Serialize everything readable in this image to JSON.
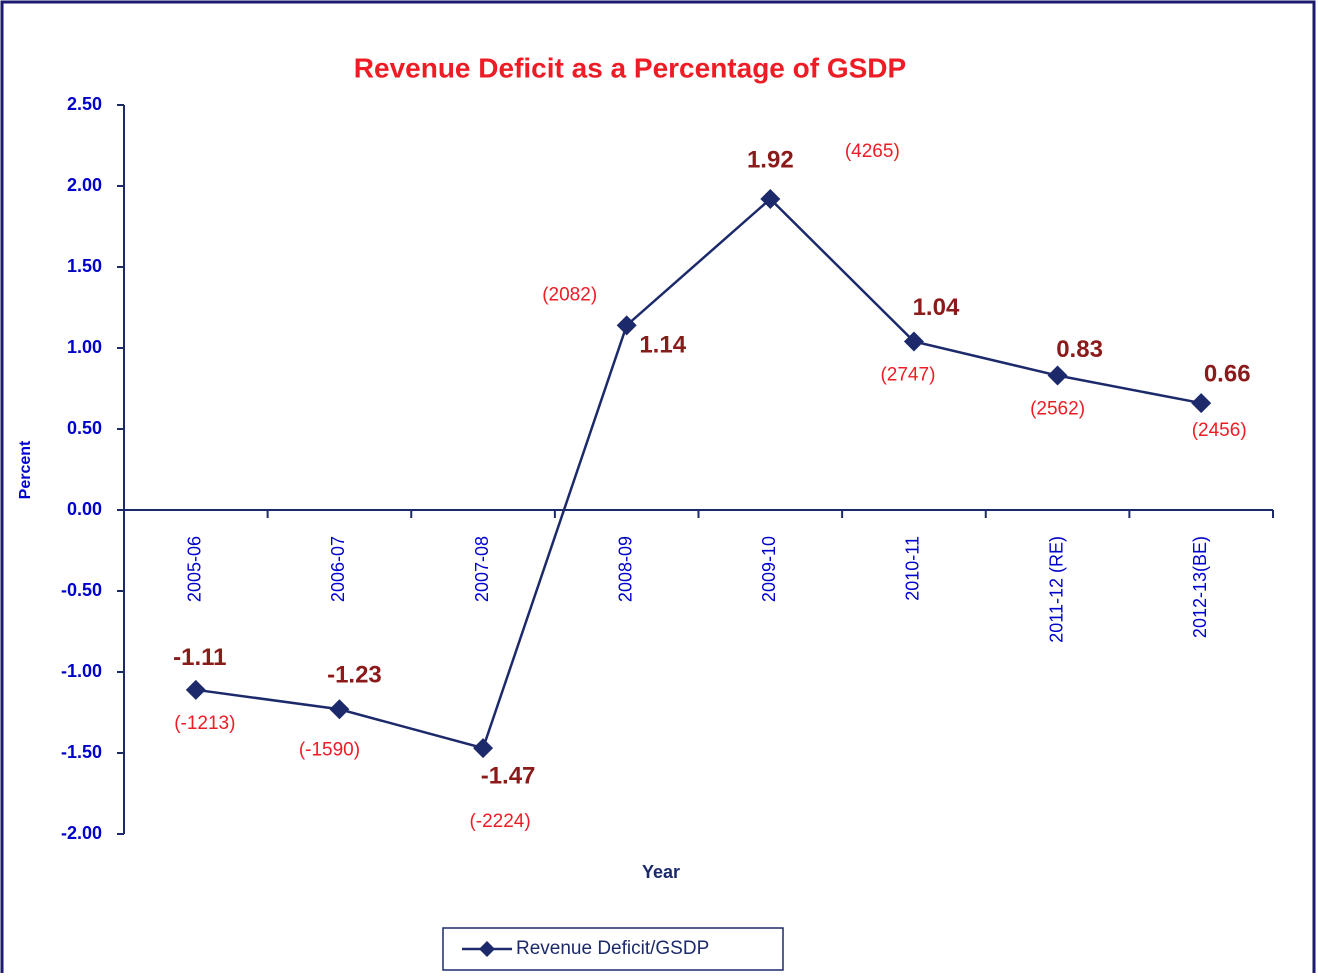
{
  "chart_data": {
    "type": "line",
    "title": "Revenue  Deficit  as a Percentage of GSDP",
    "y_label": "Percent",
    "x_label": "Year",
    "categories": [
      "2005-06",
      "2006-07",
      "2007-08",
      "2008-09",
      "2009-10",
      "2010-11",
      "2011-12 (RE)",
      "2012-13(BE)"
    ],
    "series": [
      {
        "name": "Revenue Deficit/GSDP",
        "color": "#1c2a6b",
        "values": [
          -1.11,
          -1.23,
          -1.47,
          1.14,
          1.92,
          1.04,
          0.83,
          0.66
        ]
      }
    ],
    "annotations": [
      "(-1213)",
      "(-1590)",
      "(-2224)",
      "(2082)",
      "(4265)",
      "(2747)",
      "(2562)",
      "(2456)"
    ],
    "ylim": [
      -2.0,
      2.5
    ],
    "yticks": [
      {
        "value": -2.0,
        "label": "-2.00"
      },
      {
        "value": -1.5,
        "label": "-1.50"
      },
      {
        "value": -1.0,
        "label": "-1.00"
      },
      {
        "value": -0.5,
        "label": "-0.50"
      },
      {
        "value": 0,
        "label": "0.00"
      },
      {
        "value": 0.5,
        "label": "0.50"
      },
      {
        "value": 1.0,
        "label": "1.00"
      },
      {
        "value": 1.5,
        "label": "1.50"
      },
      {
        "value": 2.0,
        "label": "2.00"
      },
      {
        "value": 2.5,
        "label": "2.50"
      }
    ],
    "grid": false,
    "legend": "bottom"
  }
}
